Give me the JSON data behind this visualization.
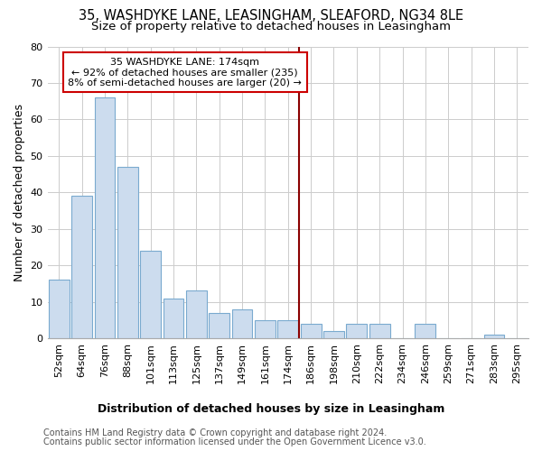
{
  "title1": "35, WASHDYKE LANE, LEASINGHAM, SLEAFORD, NG34 8LE",
  "title2": "Size of property relative to detached houses in Leasingham",
  "xlabel": "Distribution of detached houses by size in Leasingham",
  "ylabel": "Number of detached properties",
  "categories": [
    "52sqm",
    "64sqm",
    "76sqm",
    "88sqm",
    "101sqm",
    "113sqm",
    "125sqm",
    "137sqm",
    "149sqm",
    "161sqm",
    "174sqm",
    "186sqm",
    "198sqm",
    "210sqm",
    "222sqm",
    "234sqm",
    "246sqm",
    "259sqm",
    "271sqm",
    "283sqm",
    "295sqm"
  ],
  "values": [
    16,
    39,
    66,
    47,
    24,
    11,
    13,
    7,
    8,
    5,
    5,
    4,
    2,
    4,
    4,
    0,
    4,
    0,
    0,
    1,
    0
  ],
  "bar_color": "#ccdcee",
  "bar_edge_color": "#7aaacf",
  "vline_index": 10,
  "vline_color": "#8b0000",
  "ylim": [
    0,
    80
  ],
  "yticks": [
    0,
    10,
    20,
    30,
    40,
    50,
    60,
    70,
    80
  ],
  "annotation_title": "35 WASHDYKE LANE: 174sqm",
  "annotation_line1": "← 92% of detached houses are smaller (235)",
  "annotation_line2": "8% of semi-detached houses are larger (20) →",
  "annotation_box_color": "#ffffff",
  "annotation_box_edge_color": "#cc0000",
  "footer1": "Contains HM Land Registry data © Crown copyright and database right 2024.",
  "footer2": "Contains public sector information licensed under the Open Government Licence v3.0.",
  "background_color": "#ffffff",
  "plot_background_color": "#ffffff",
  "grid_color": "#cccccc",
  "title1_fontsize": 10.5,
  "title2_fontsize": 9.5,
  "axis_label_fontsize": 9,
  "tick_fontsize": 8,
  "footer_fontsize": 7
}
